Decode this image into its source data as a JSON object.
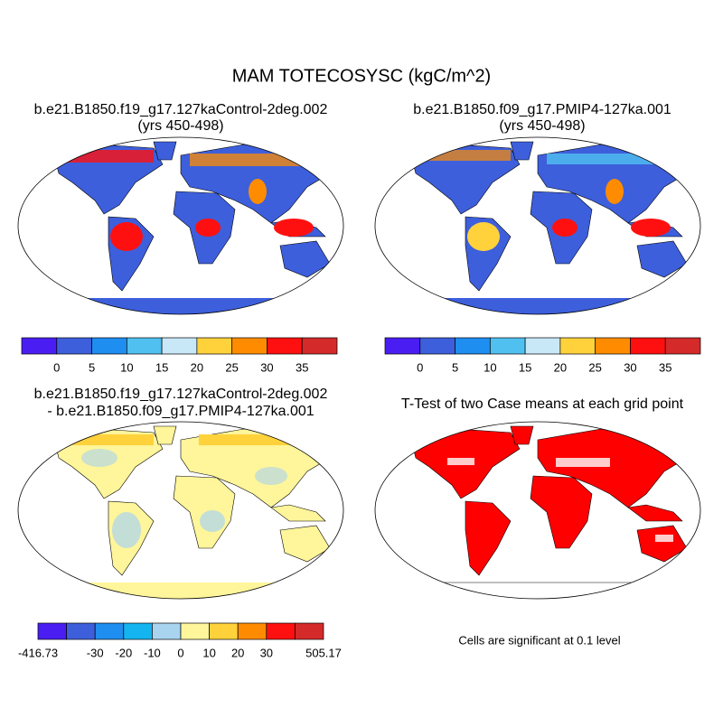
{
  "title": "MAM TOTECOSYSC (kgC/m^2)",
  "panels": [
    {
      "title": [
        "b.e21.B1850.f19_g17.127kaControl-2deg.002",
        "(yrs 450-498)"
      ]
    },
    {
      "title": [
        "b.e21.B1850.f09_g17.PMIP4-127ka.001",
        "(yrs 450-498)"
      ]
    },
    {
      "title": [
        "b.e21.B1850.f19_g17.127kaControl-2deg.002",
        "- b.e21.B1850.f09_g17.PMIP4-127ka.001"
      ]
    },
    {
      "title": [
        "T-Test of two Case means at each grid point"
      ]
    }
  ],
  "colorbars": [
    {
      "colors": [
        "#4a1ef2",
        "#3d5fdc",
        "#1e8ef0",
        "#50c0f0",
        "#c8e8f8",
        "#ffd23c",
        "#ff8c00",
        "#ff1010",
        "#d42a2a"
      ],
      "labels": [
        null,
        0,
        5,
        10,
        15,
        20,
        25,
        30,
        35,
        null
      ]
    },
    {
      "colors": [
        "#4a1ef2",
        "#3d5fdc",
        "#1e8ef0",
        "#50c0f0",
        "#c8e8f8",
        "#ffd23c",
        "#ff8c00",
        "#ff1010",
        "#d42a2a"
      ],
      "labels": [
        null,
        0,
        5,
        10,
        15,
        20,
        25,
        30,
        35,
        null
      ]
    },
    {
      "colors": [
        "#4a1ef2",
        "#3d5fdc",
        "#1e8ef0",
        "#14b4f0",
        "#a8d4f0",
        "#fff59a",
        "#ffd23c",
        "#ff8c00",
        "#ff1010",
        "#d42a2a"
      ],
      "labels": [
        -416.73,
        null,
        -30,
        -20,
        -10,
        0,
        10,
        20,
        30,
        null,
        505.17
      ]
    }
  ],
  "note": "Cells are significant at 0.1 level"
}
